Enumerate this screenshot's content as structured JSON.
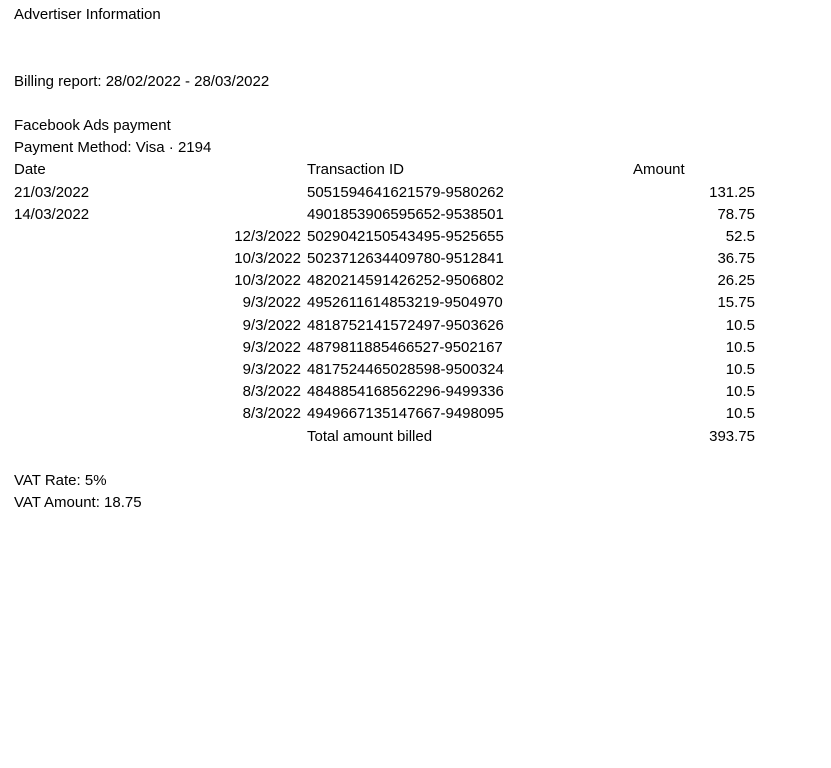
{
  "page": {
    "title": "Advertiser Information",
    "billing_report": "Billing report: 28/02/2022 - 28/03/2022",
    "payment": {
      "line1": "Facebook Ads payment",
      "line2": "Payment Method: Visa · 2194"
    },
    "table": {
      "headers": {
        "date": "Date",
        "transaction_id": "Transaction ID",
        "amount": "Amount"
      },
      "rows": [
        {
          "date": "21/03/2022",
          "date_align": "left",
          "transaction_id": "5051594641621579-9580262",
          "amount": "131.25"
        },
        {
          "date": "14/03/2022",
          "date_align": "left",
          "transaction_id": "4901853906595652-9538501",
          "amount": "78.75"
        },
        {
          "date": "12/3/2022",
          "date_align": "right",
          "transaction_id": "5029042150543495-9525655",
          "amount": "52.5"
        },
        {
          "date": "10/3/2022",
          "date_align": "right",
          "transaction_id": "5023712634409780-9512841",
          "amount": "36.75"
        },
        {
          "date": "10/3/2022",
          "date_align": "right",
          "transaction_id": "4820214591426252-9506802",
          "amount": "26.25"
        },
        {
          "date": "9/3/2022",
          "date_align": "right",
          "transaction_id": "4952611614853219-9504970",
          "amount": "15.75"
        },
        {
          "date": "9/3/2022",
          "date_align": "right",
          "transaction_id": "4818752141572497-9503626",
          "amount": "10.5"
        },
        {
          "date": "9/3/2022",
          "date_align": "right",
          "transaction_id": "4879811885466527-9502167",
          "amount": "10.5"
        },
        {
          "date": "9/3/2022",
          "date_align": "right",
          "transaction_id": "4817524465028598-9500324",
          "amount": "10.5"
        },
        {
          "date": "8/3/2022",
          "date_align": "right",
          "transaction_id": "4848854168562296-9499336",
          "amount": "10.5"
        },
        {
          "date": "8/3/2022",
          "date_align": "right",
          "transaction_id": "4949667135147667-9498095",
          "amount": "10.5"
        }
      ],
      "total": {
        "label": "Total amount billed",
        "amount": "393.75"
      }
    },
    "vat": {
      "rate": "VAT Rate: 5%",
      "amount": "VAT Amount: 18.75"
    },
    "colors": {
      "text": "#000000",
      "background": "#ffffff"
    }
  }
}
